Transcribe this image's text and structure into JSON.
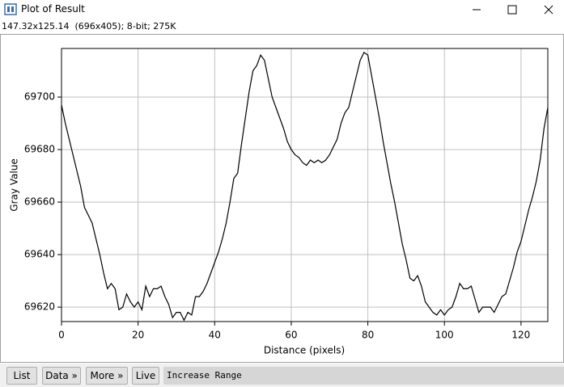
{
  "window": {
    "title": "Plot of Result",
    "info": "147.32x125.14  (696x405); 8-bit; 275K"
  },
  "chart_data": {
    "type": "line",
    "x_label": "Distance (pixels)",
    "y_label": "Gray Value",
    "x": [
      0,
      1,
      2,
      3,
      4,
      5,
      6,
      7,
      8,
      9,
      10,
      11,
      12,
      13,
      14,
      15,
      16,
      17,
      18,
      19,
      20,
      21,
      22,
      23,
      24,
      25,
      26,
      27,
      28,
      29,
      30,
      31,
      32,
      33,
      34,
      35,
      36,
      37,
      38,
      39,
      40,
      41,
      42,
      43,
      44,
      45,
      46,
      47,
      48,
      49,
      50,
      51,
      52,
      53,
      54,
      55,
      56,
      57,
      58,
      59,
      60,
      61,
      62,
      63,
      64,
      65,
      66,
      67,
      68,
      69,
      70,
      71,
      72,
      73,
      74,
      75,
      76,
      77,
      78,
      79,
      80,
      81,
      82,
      83,
      84,
      85,
      86,
      87,
      88,
      89,
      90,
      91,
      92,
      93,
      94,
      95,
      96,
      97,
      98,
      99,
      100,
      101,
      102,
      103,
      104,
      105,
      106,
      107,
      108,
      109,
      110,
      111,
      112,
      113,
      114,
      115,
      116,
      117,
      118,
      119,
      120,
      121,
      122,
      123,
      124,
      125,
      126,
      127
    ],
    "values": [
      69697,
      69690,
      69684,
      69678,
      69672,
      69666,
      69658,
      69655,
      69652,
      69646,
      69640,
      69633,
      69627,
      69629,
      69627,
      69619,
      69620,
      69625,
      69622,
      69620,
      69622,
      69619,
      69628,
      69624,
      69627,
      69627,
      69628,
      69624,
      69621,
      69616,
      69618,
      69618,
      69615,
      69618,
      69617,
      69624,
      69624,
      69626,
      69629,
      69633,
      69637,
      69641,
      69646,
      69652,
      69660,
      69669,
      69671,
      69682,
      69692,
      69702,
      69710,
      69712,
      69716,
      69714,
      69707,
      69700,
      69696,
      69692,
      69688,
      69683,
      69680,
      69678,
      69677,
      69675,
      69674,
      69676,
      69675,
      69676,
      69675,
      69676,
      69678,
      69681,
      69684,
      69690,
      69694,
      69696,
      69702,
      69708,
      69714,
      69717,
      69716,
      69708,
      69700,
      69692,
      69683,
      69675,
      69667,
      69660,
      69652,
      69644,
      69638,
      69631,
      69630,
      69632,
      69628,
      69622,
      69620,
      69618,
      69617,
      69619,
      69617,
      69619,
      69620,
      69624,
      69629,
      69627,
      69627,
      69628,
      69623,
      69618,
      69620,
      69620,
      69620,
      69618,
      69621,
      69624,
      69625,
      69630,
      69635,
      69641,
      69645,
      69651,
      69657,
      69662,
      69668,
      69676,
      69688,
      69696
    ],
    "color": "#000000",
    "xlim": [
      0,
      127
    ],
    "ylim": [
      69614.5,
      69718.5
    ],
    "xticks": [
      0,
      20,
      40,
      60,
      80,
      100,
      120
    ],
    "yticks": [
      69620,
      69640,
      69660,
      69680,
      69700
    ],
    "grid": true
  },
  "buttons": [
    "List",
    "Data »",
    "More »",
    "Live"
  ],
  "status": "Increase Range"
}
